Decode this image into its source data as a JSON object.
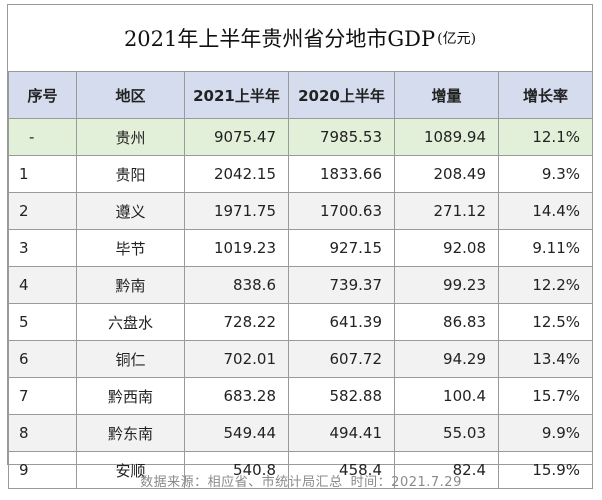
{
  "title": "2021年上半年贵州省分地市GDP",
  "unit": "(亿元)",
  "headers": [
    "序号",
    "地区",
    "2021上半年",
    "2020上半年",
    "增量",
    "增长率"
  ],
  "rows": [
    {
      "no": "-",
      "region": "贵州",
      "y2021": "9075.47",
      "y2020": "7985.53",
      "increase": "1089.94",
      "rate": "12.1%"
    },
    {
      "no": "1",
      "region": "贵阳",
      "y2021": "2042.15",
      "y2020": "1833.66",
      "increase": "208.49",
      "rate": "9.3%"
    },
    {
      "no": "2",
      "region": "遵义",
      "y2021": "1971.75",
      "y2020": "1700.63",
      "increase": "271.12",
      "rate": "14.4%"
    },
    {
      "no": "3",
      "region": "毕节",
      "y2021": "1019.23",
      "y2020": "927.15",
      "increase": "92.08",
      "rate": "9.11%"
    },
    {
      "no": "4",
      "region": "黔南",
      "y2021": "838.6",
      "y2020": "739.37",
      "increase": "99.23",
      "rate": "12.2%"
    },
    {
      "no": "5",
      "region": "六盘水",
      "y2021": "728.22",
      "y2020": "641.39",
      "increase": "86.83",
      "rate": "12.5%"
    },
    {
      "no": "6",
      "region": "铜仁",
      "y2021": "702.01",
      "y2020": "607.72",
      "increase": "94.29",
      "rate": "13.4%"
    },
    {
      "no": "7",
      "region": "黔西南",
      "y2021": "683.28",
      "y2020": "582.88",
      "increase": "100.4",
      "rate": "15.7%"
    },
    {
      "no": "8",
      "region": "黔东南",
      "y2021": "549.44",
      "y2020": "494.41",
      "increase": "55.03",
      "rate": "9.9%"
    },
    {
      "no": "9",
      "region": "安顺",
      "y2021": "540.8",
      "y2020": "458.4",
      "increase": "82.4",
      "rate": "15.9%"
    }
  ],
  "source": {
    "label": "数据来源：相应省、市统计局汇总",
    "time": "时间：2021.7.29"
  }
}
